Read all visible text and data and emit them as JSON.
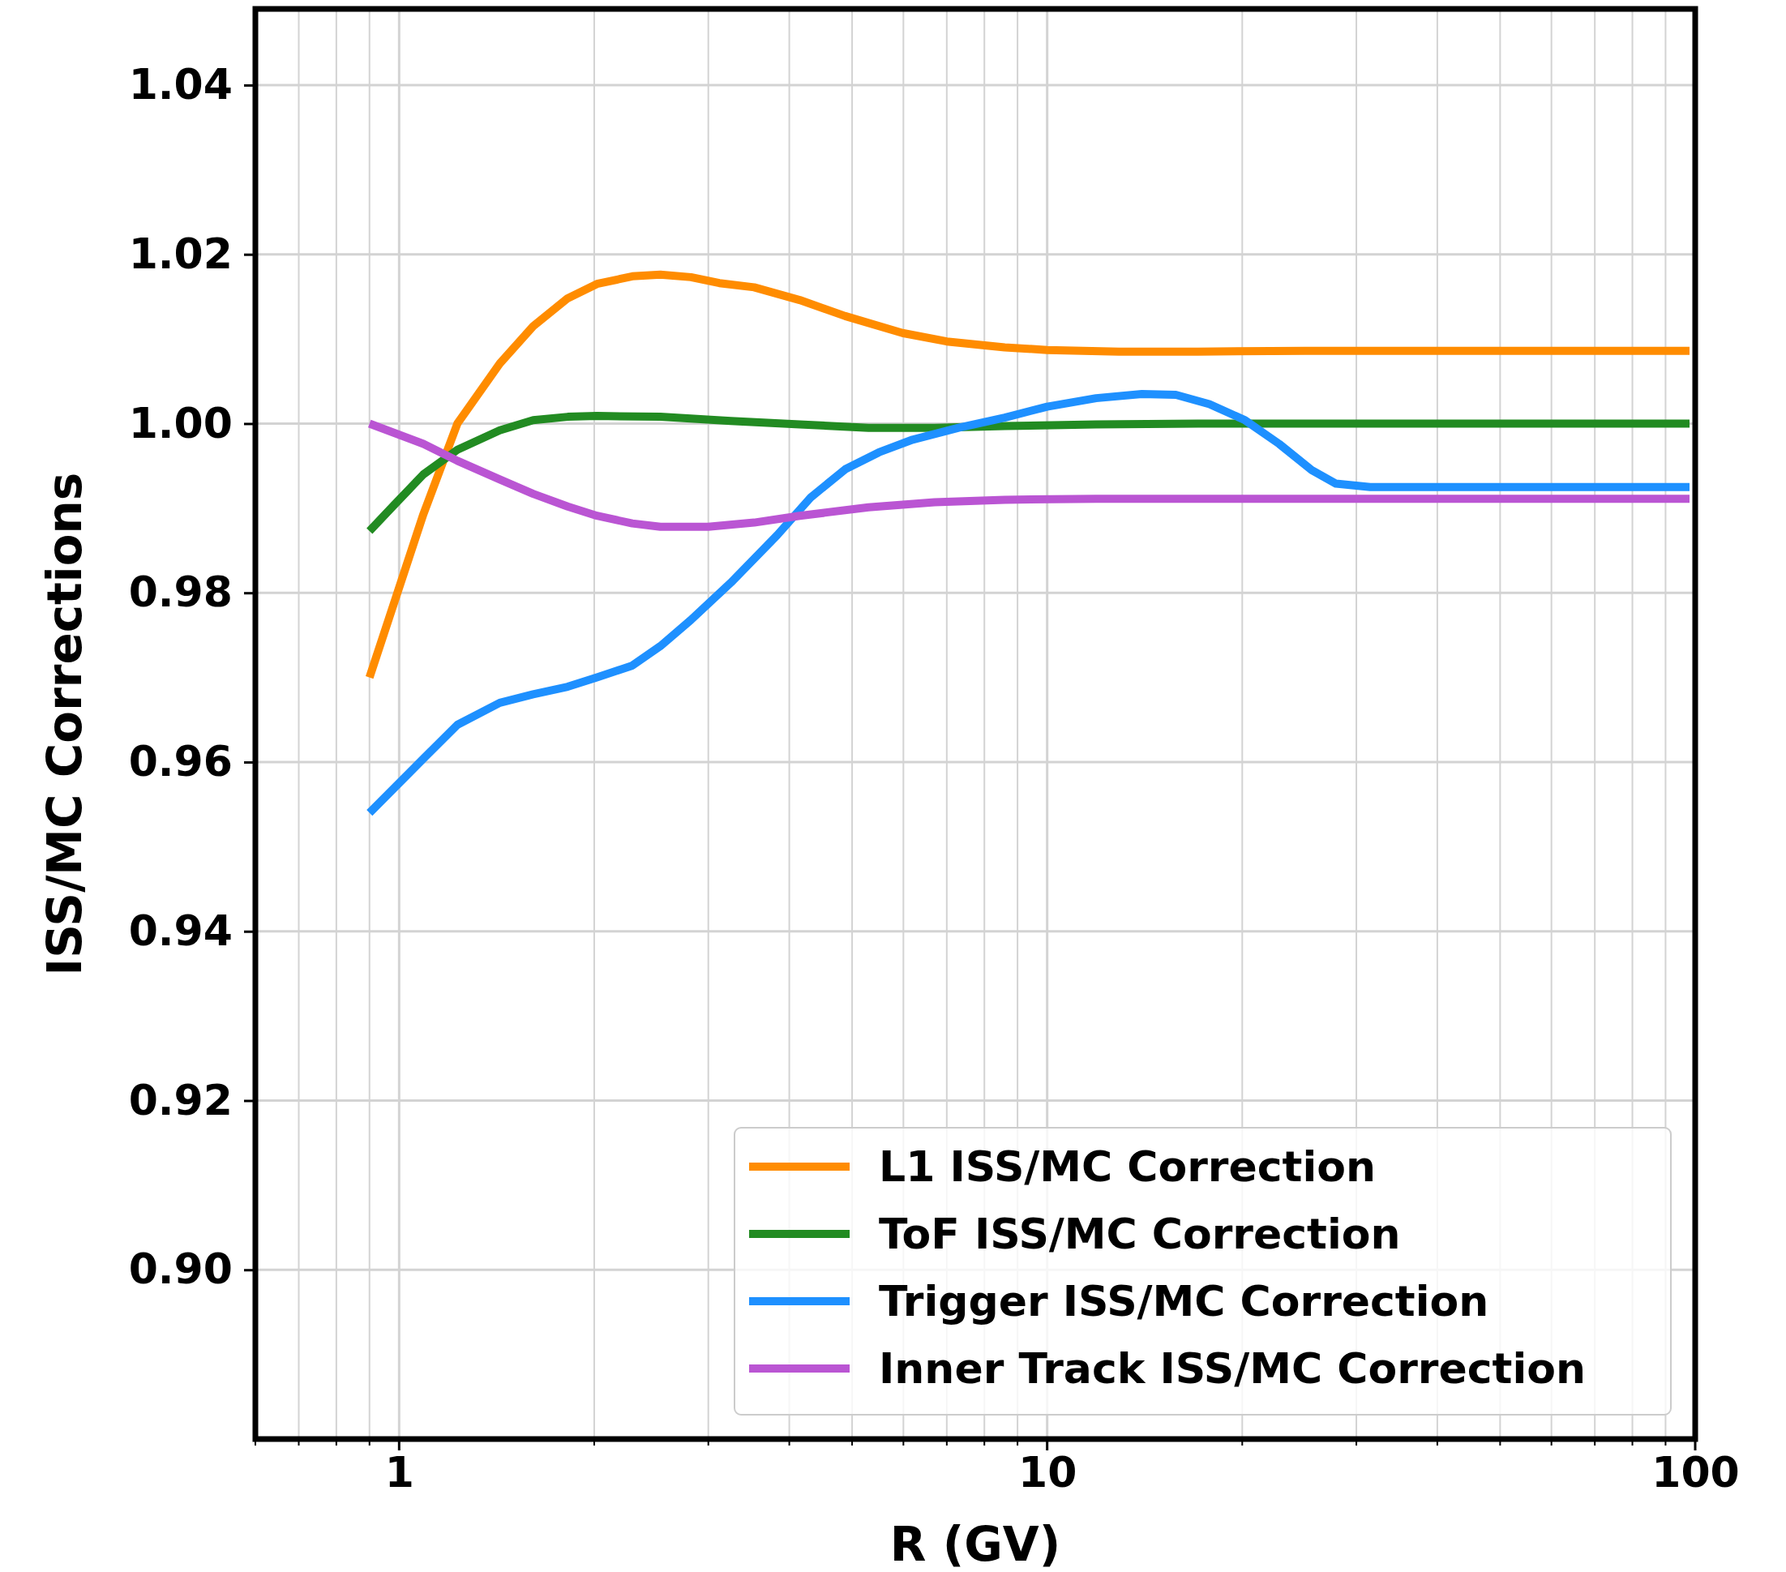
{
  "chart_data": {
    "type": "line",
    "xlabel": "R (GV)",
    "ylabel": "ISS/MC Corrections",
    "log": "x",
    "grid": true,
    "legend": "bottom right",
    "line_style": "solid",
    "marker": "none",
    "xlim": [
      0.6,
      100
    ],
    "ylim": [
      0.88,
      1.049
    ],
    "xticks": [
      {
        "value": 0.6,
        "label": null
      },
      {
        "value": 0.7,
        "label": null
      },
      {
        "value": 0.8,
        "label": null
      },
      {
        "value": 0.9,
        "label": null
      },
      1,
      {
        "value": 2,
        "label": null
      },
      {
        "value": 3,
        "label": null
      },
      {
        "value": 4,
        "label": null
      },
      {
        "value": 5,
        "label": null
      },
      {
        "value": 6,
        "label": null
      },
      {
        "value": 7,
        "label": null
      },
      {
        "value": 8,
        "label": null
      },
      {
        "value": 9,
        "label": null
      },
      10,
      {
        "value": 20,
        "label": null
      },
      {
        "value": 30,
        "label": null
      },
      {
        "value": 40,
        "label": null
      },
      {
        "value": 50,
        "label": null
      },
      {
        "value": 60,
        "label": null
      },
      {
        "value": 70,
        "label": null
      },
      {
        "value": 80,
        "label": null
      },
      {
        "value": 90,
        "label": null
      },
      100
    ],
    "yticks": [
      {
        "value": 0.9,
        "label": "0.90"
      },
      {
        "value": 0.92,
        "label": "0.92"
      },
      {
        "value": 0.94,
        "label": "0.94"
      },
      {
        "value": 0.96,
        "label": "0.96"
      },
      {
        "value": 0.98,
        "label": "0.98"
      },
      {
        "value": 1.0,
        "label": "1.00"
      },
      {
        "value": 1.02,
        "label": "1.02"
      },
      {
        "value": 1.04,
        "label": "1.04"
      }
    ],
    "series": [
      {
        "name": "L1 ISS/MC Correction",
        "color": "#ff8c00",
        "x": [
          0.9,
          1.09,
          1.23,
          1.43,
          1.61,
          1.82,
          2.02,
          2.29,
          2.53,
          2.82,
          3.12,
          3.53,
          4.15,
          4.88,
          5.98,
          7.0,
          8.6,
          10,
          12.9,
          17.1,
          25,
          50,
          98
        ],
        "values": [
          0.97,
          0.9893,
          1.0,
          1.0071,
          1.0115,
          1.0148,
          1.0165,
          1.0174,
          1.0176,
          1.0173,
          1.0166,
          1.0161,
          1.0146,
          1.0127,
          1.0107,
          1.0097,
          1.009,
          1.0087,
          1.0085,
          1.0085,
          1.0086,
          1.0086,
          1.0086
        ]
      },
      {
        "name": "ToF ISS/MC Correction",
        "color": "#228b22",
        "x": [
          0.9,
          0.98,
          1.09,
          1.23,
          1.43,
          1.61,
          1.82,
          2.02,
          2.53,
          3.25,
          4.15,
          5.3,
          6.7,
          8.6,
          11.9,
          17.1,
          98
        ],
        "values": [
          0.9873,
          0.9903,
          0.994,
          0.9969,
          0.9992,
          1.0004,
          1.0008,
          1.0009,
          1.0008,
          1.0003,
          0.9999,
          0.9995,
          0.9995,
          0.9997,
          0.9999,
          1.0,
          1.0
        ]
      },
      {
        "name": "Trigger ISS/MC Correction",
        "color": "#1e90ff",
        "x": [
          0.9,
          1.09,
          1.23,
          1.43,
          1.61,
          1.82,
          2.02,
          2.29,
          2.53,
          2.82,
          3.25,
          3.83,
          4.32,
          4.88,
          5.5,
          6.2,
          7.3,
          8.6,
          10,
          11.9,
          14.0,
          15.8,
          17.8,
          20.2,
          22.8,
          25.6,
          27.9,
          31.5,
          98
        ],
        "values": [
          0.954,
          0.9604,
          0.9644,
          0.967,
          0.968,
          0.9689,
          0.97,
          0.9714,
          0.9737,
          0.9768,
          0.9812,
          0.9868,
          0.9913,
          0.9946,
          0.9966,
          0.9981,
          0.9995,
          1.0007,
          1.002,
          1.003,
          1.0035,
          1.0034,
          1.0023,
          1.0004,
          0.9976,
          0.9945,
          0.9929,
          0.9925,
          0.9925
        ]
      },
      {
        "name": "Inner Track ISS/MC Correction",
        "color": "#ba55d3",
        "x": [
          0.9,
          1.09,
          1.23,
          1.43,
          1.61,
          1.82,
          2.02,
          2.29,
          2.53,
          3.0,
          3.53,
          4.15,
          5.3,
          6.7,
          8.6,
          11.9,
          98
        ],
        "values": [
          1.0,
          0.9976,
          0.9956,
          0.9934,
          0.9917,
          0.9902,
          0.9891,
          0.9882,
          0.9878,
          0.9878,
          0.9883,
          0.9891,
          0.9901,
          0.9907,
          0.991,
          0.9911,
          0.9911
        ]
      }
    ]
  }
}
